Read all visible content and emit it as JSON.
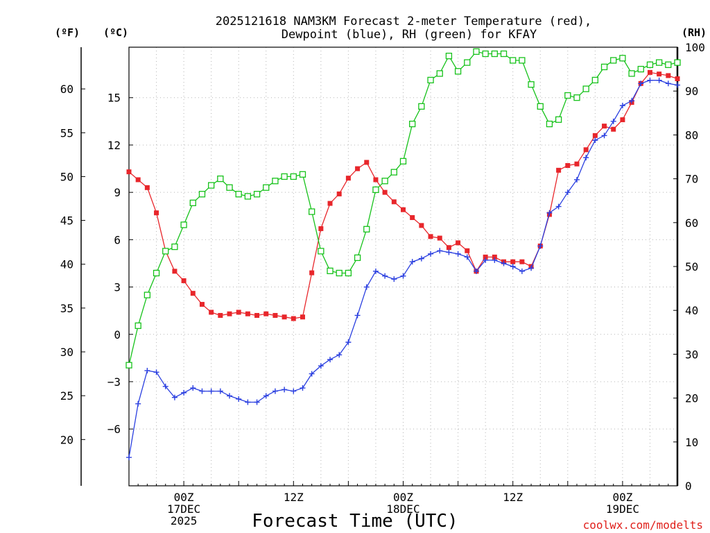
{
  "chart_data": {
    "type": "line",
    "title_line1": "2025121618 NAM3KM Forecast 2-meter Temperature (red),",
    "title_line2": "Dewpoint (blue), RH (green) for KFAY",
    "xlabel": "Forecast Time (UTC)",
    "credit": "coolwx.com/modelts",
    "x_unit": "forecast hour",
    "xlim": [
      0,
      60
    ],
    "x_ticks": [
      {
        "x": 6,
        "labels": [
          "00Z",
          "17DEC",
          "2025"
        ]
      },
      {
        "x": 18,
        "labels": [
          "12Z"
        ]
      },
      {
        "x": 30,
        "labels": [
          "00Z",
          "18DEC"
        ]
      },
      {
        "x": 42,
        "labels": [
          "12Z"
        ]
      },
      {
        "x": 54,
        "labels": [
          "00Z",
          "19DEC"
        ]
      }
    ],
    "axes": {
      "celsius": {
        "label": "(ºC)",
        "ylim": [
          -9.6,
          18.2
        ],
        "ticks": [
          -6,
          -3,
          0,
          3,
          6,
          9,
          12,
          15
        ],
        "tick_labels": [
          "−6",
          "−3",
          "0",
          "3",
          "6",
          "9",
          "12",
          "15"
        ]
      },
      "fahrenheit": {
        "label": "(ºF)",
        "ticks": [
          20,
          25,
          30,
          35,
          40,
          45,
          50,
          55,
          60
        ]
      },
      "rh": {
        "label": "(RH)",
        "ylim": [
          0,
          100
        ],
        "ticks": [
          0,
          10,
          20,
          30,
          40,
          50,
          60,
          70,
          80,
          90,
          100
        ]
      }
    },
    "series": [
      {
        "name": "2-meter Temperature",
        "unit": "C",
        "color": "#e8262b",
        "marker": "filled-square",
        "values": [
          10.3,
          9.8,
          9.3,
          7.7,
          5.3,
          4.0,
          3.4,
          2.6,
          1.9,
          1.4,
          1.2,
          1.3,
          1.4,
          1.3,
          1.2,
          1.3,
          1.2,
          1.1,
          1.0,
          1.1,
          3.9,
          6.7,
          8.3,
          8.9,
          9.9,
          10.5,
          10.9,
          9.8,
          9.0,
          8.4,
          7.9,
          7.4,
          6.9,
          6.2,
          6.1,
          5.5,
          5.8,
          5.3,
          4.0,
          4.9,
          4.9,
          4.6,
          4.6,
          4.6,
          4.3,
          5.6,
          7.6,
          10.4,
          10.7,
          10.8,
          11.7,
          12.6,
          13.2,
          13.0,
          13.6,
          14.7,
          15.9,
          16.6,
          16.5,
          16.4,
          16.2
        ]
      },
      {
        "name": "Dewpoint",
        "unit": "C",
        "color": "#2a3fe0",
        "marker": "plus",
        "values": [
          -7.8,
          -4.4,
          -2.3,
          -2.4,
          -3.3,
          -4.0,
          -3.7,
          -3.4,
          -3.6,
          -3.6,
          -3.6,
          -3.9,
          -4.1,
          -4.3,
          -4.3,
          -3.9,
          -3.6,
          -3.5,
          -3.6,
          -3.4,
          -2.5,
          -2.0,
          -1.6,
          -1.3,
          -0.5,
          1.2,
          3.0,
          4.0,
          3.7,
          3.5,
          3.7,
          4.6,
          4.8,
          5.1,
          5.3,
          5.2,
          5.1,
          4.9,
          4.0,
          4.7,
          4.7,
          4.5,
          4.3,
          4.0,
          4.2,
          5.6,
          7.7,
          8.1,
          9.0,
          9.8,
          11.2,
          12.3,
          12.6,
          13.5,
          14.5,
          14.8,
          15.9,
          16.1,
          16.1,
          15.9,
          15.8
        ]
      },
      {
        "name": "RH",
        "unit": "%",
        "color": "#16c21a",
        "marker": "open-square",
        "values": [
          27.5,
          36.5,
          43.5,
          48.5,
          53.5,
          54.5,
          59.5,
          64.5,
          66.5,
          68.5,
          70.0,
          68.0,
          66.5,
          66.0,
          66.5,
          68.0,
          69.5,
          70.5,
          70.5,
          71.0,
          62.5,
          53.5,
          49.0,
          48.5,
          48.5,
          52.0,
          58.5,
          67.5,
          69.5,
          71.5,
          74.0,
          82.5,
          86.5,
          92.5,
          94.0,
          98.0,
          94.5,
          96.5,
          99.0,
          98.5,
          98.5,
          98.5,
          97.0,
          97.0,
          91.5,
          86.5,
          82.5,
          83.5,
          89.0,
          88.5,
          90.5,
          92.5,
          95.5,
          97.0,
          97.5,
          94.0,
          95.0,
          96.0,
          96.5,
          96.0,
          96.5
        ]
      }
    ]
  }
}
